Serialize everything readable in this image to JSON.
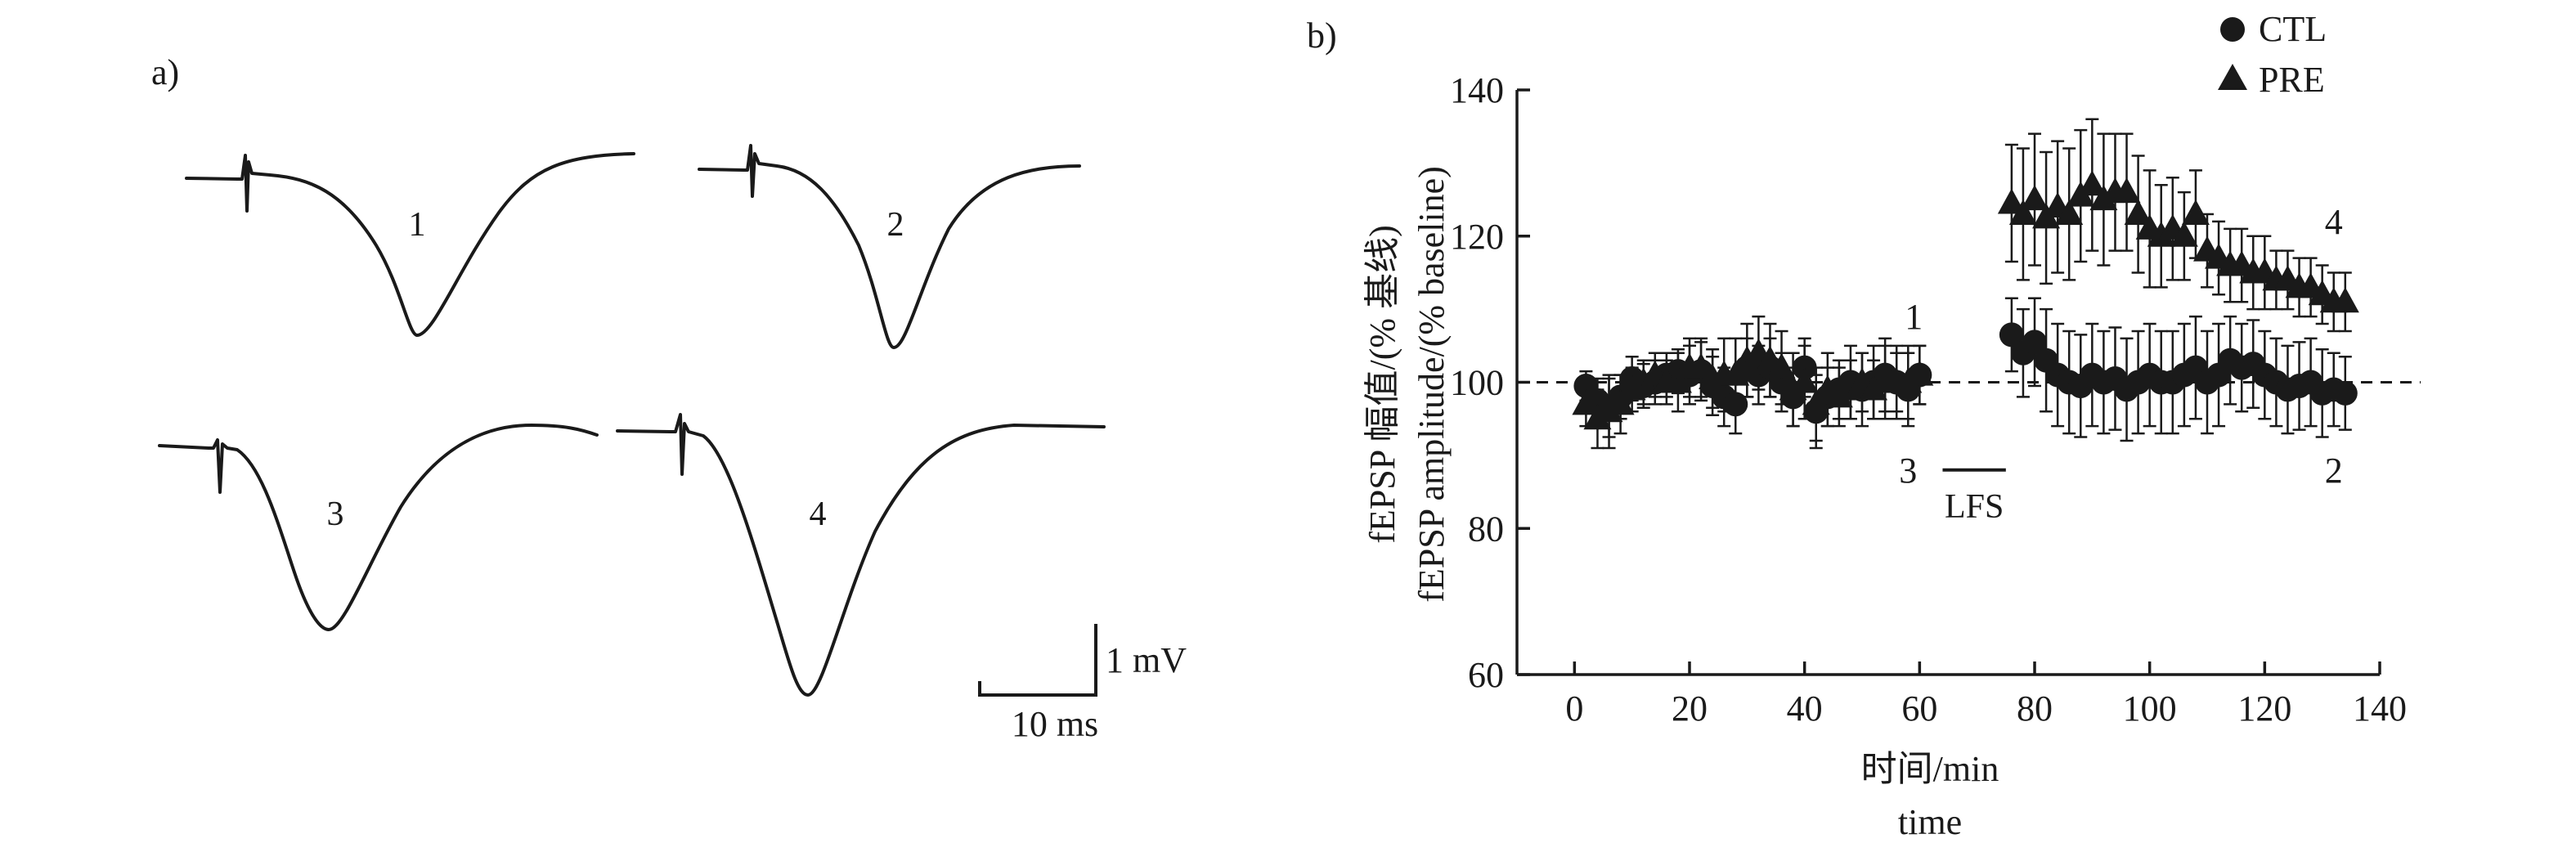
{
  "panel_a": {
    "label": "a)",
    "trace_labels": [
      "1",
      "2",
      "3",
      "4"
    ],
    "scale_bar": {
      "voltage_label": "1 mV",
      "time_label": "10 ms"
    }
  },
  "panel_b": {
    "label": "b)"
  },
  "chart_data": {
    "type": "scatter",
    "title": "",
    "xlabel": "时间/min",
    "xlabel_en": "time",
    "ylabel": "fEPSP 幅值/(% 基线)",
    "ylabel_en": "fEPSP amplitude/(% baseline)",
    "xlim": [
      -10,
      140
    ],
    "ylim": [
      60,
      140
    ],
    "xticks": [
      0,
      20,
      40,
      60,
      80,
      100,
      120,
      140
    ],
    "yticks": [
      60,
      80,
      100,
      120,
      140
    ],
    "baseline": 100,
    "legend_position": "top-right",
    "stimulus": {
      "label": "LFS",
      "x_start": 64,
      "x_end": 75,
      "y": 88
    },
    "annotations": [
      {
        "text": "1",
        "x": 59,
        "y": 109
      },
      {
        "text": "3",
        "x": 58,
        "y": 88
      },
      {
        "text": "4",
        "x": 132,
        "y": 122
      },
      {
        "text": "2",
        "x": 132,
        "y": 88
      }
    ],
    "series": [
      {
        "name": "CTL",
        "marker": "circle",
        "x": [
          2,
          4,
          6,
          8,
          10,
          12,
          14,
          16,
          18,
          20,
          22,
          24,
          26,
          28,
          30,
          32,
          34,
          36,
          38,
          40,
          42,
          44,
          46,
          48,
          50,
          52,
          54,
          56,
          58,
          60,
          76,
          78,
          80,
          82,
          84,
          86,
          88,
          90,
          92,
          94,
          96,
          98,
          100,
          102,
          104,
          106,
          108,
          110,
          112,
          114,
          116,
          118,
          120,
          122,
          124,
          126,
          128,
          130,
          132,
          134
        ],
        "y": [
          99.5,
          97.5,
          96.5,
          98,
          100.5,
          99.5,
          100,
          101,
          101.5,
          101,
          101.5,
          99.5,
          98,
          97,
          102,
          101,
          102,
          100,
          98,
          102,
          96,
          98,
          99,
          100,
          99,
          100,
          101,
          100,
          99,
          101,
          106.5,
          104,
          105.5,
          103,
          101,
          100,
          99.5,
          101,
          100,
          100.5,
          99,
          100,
          101,
          100,
          100,
          101,
          102,
          100,
          101,
          103,
          102,
          102.5,
          101,
          100,
          99,
          99.5,
          100,
          98.5,
          99,
          98.5
        ],
        "err": [
          2,
          3,
          4,
          3,
          3,
          3,
          3,
          3,
          3,
          4,
          4,
          4,
          4,
          4,
          4,
          4,
          4,
          4,
          4,
          4,
          5,
          4,
          4,
          5,
          5,
          5,
          5,
          5,
          5,
          4,
          5,
          6,
          6,
          7,
          7,
          7,
          7,
          7,
          7,
          7,
          7,
          7,
          7,
          7,
          7,
          7,
          7,
          7,
          7,
          6,
          6,
          6,
          6,
          6,
          6,
          6,
          6,
          6,
          5,
          5
        ]
      },
      {
        "name": "PRE",
        "marker": "triangle",
        "x": [
          2,
          4,
          6,
          8,
          10,
          12,
          14,
          16,
          18,
          20,
          22,
          24,
          26,
          28,
          30,
          32,
          34,
          36,
          38,
          40,
          42,
          44,
          46,
          48,
          50,
          52,
          54,
          56,
          58,
          60,
          76,
          78,
          80,
          82,
          84,
          86,
          88,
          90,
          92,
          94,
          96,
          98,
          100,
          102,
          104,
          106,
          108,
          110,
          112,
          114,
          116,
          118,
          120,
          122,
          124,
          126,
          128,
          130,
          132,
          134
        ],
        "y": [
          97,
          95,
          96,
          97,
          99,
          100,
          101,
          100,
          100,
          102,
          102,
          100.5,
          101,
          101,
          103,
          104,
          103,
          102,
          99,
          100,
          97,
          99,
          98,
          99,
          100,
          99,
          100,
          100,
          100,
          101,
          124.5,
          123,
          125,
          122.5,
          124,
          123,
          125.5,
          127,
          125,
          126,
          126,
          123,
          121,
          120,
          121,
          120,
          123,
          118,
          117,
          116,
          116,
          115,
          115,
          114,
          114,
          113,
          113,
          112,
          111,
          111
        ],
        "err": [
          3,
          4,
          5,
          4,
          3,
          3,
          3,
          3,
          4,
          4,
          4,
          4,
          5,
          5,
          5,
          5,
          5,
          5,
          5,
          5,
          5,
          5,
          4,
          4,
          4,
          4,
          5,
          4,
          5,
          4,
          8,
          9,
          9,
          9,
          9,
          9,
          9,
          9,
          9,
          8,
          8,
          8,
          8,
          7,
          7,
          6,
          6,
          5,
          5,
          5,
          5,
          5,
          5,
          4,
          4,
          4,
          4,
          4,
          4,
          4
        ]
      }
    ]
  }
}
